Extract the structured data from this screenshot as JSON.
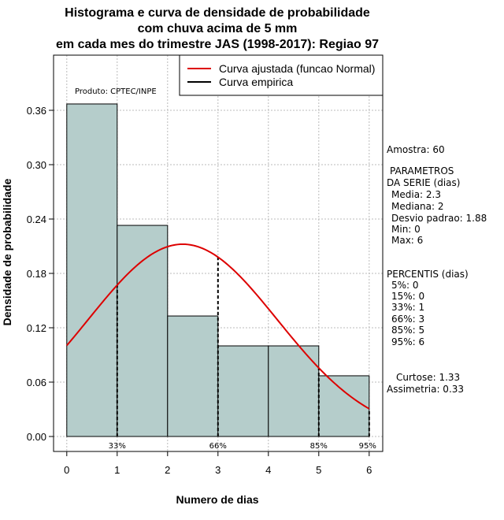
{
  "colors": {
    "bar_fill": "#b5cdcb",
    "fitted_curve": "#dd0000",
    "grid": "#bbbbbb"
  },
  "chart_data": {
    "type": "bar",
    "title_lines": [
      "Histograma e curva de densidade de probabilidade",
      "com chuva acima de 5 mm",
      "em cada mes do trimestre JAS (1998-2017): Regiao 97"
    ],
    "xlabel": "Numero de dias",
    "ylabel": "Densidade de probabilidade",
    "xlim": [
      -0.2,
      6.2
    ],
    "ylim": [
      0,
      0.42
    ],
    "x_ticks": [
      "0",
      "1",
      "2",
      "3",
      "4",
      "5",
      "6"
    ],
    "y_ticks": [
      "0.00",
      "0.06",
      "0.12",
      "0.18",
      "0.24",
      "0.30",
      "0.36"
    ],
    "bins": [
      {
        "from": 0,
        "to": 1,
        "value": 0.367
      },
      {
        "from": 1,
        "to": 2,
        "value": 0.233
      },
      {
        "from": 2,
        "to": 3,
        "value": 0.133
      },
      {
        "from": 3,
        "to": 4,
        "value": 0.1
      },
      {
        "from": 4,
        "to": 5,
        "value": 0.1
      },
      {
        "from": 5,
        "to": 6,
        "value": 0.067
      }
    ],
    "fitted_normal": {
      "mean": 2.3,
      "sd": 1.88
    },
    "percentile_markers": [
      {
        "x": 1,
        "label": "33%"
      },
      {
        "x": 3,
        "label": "66%"
      },
      {
        "x": 5,
        "label": "85%"
      },
      {
        "x": 6,
        "label": "95%"
      }
    ],
    "legend": {
      "position": "top-right",
      "entries": [
        {
          "label": "Curva ajustada (funcao Normal)",
          "color": "#dd0000"
        },
        {
          "label": "Curva empirica",
          "color": "#000000"
        }
      ]
    },
    "product_label": "Produto: CPTEC/INPE",
    "grid": true
  },
  "stats": {
    "sample": "Amostra: 60",
    "params_heading_1": "PARAMETROS",
    "params_heading_2": "DA SERIE (dias)",
    "params": [
      "Media: 2.3",
      "Mediana: 2",
      "Desvio padrao: 1.88",
      "Min: 0",
      "Max: 6"
    ],
    "percentis_heading": "PERCENTIS (dias)",
    "percentis": [
      "5%: 0",
      "15%: 0",
      "33%: 1",
      "66%: 3",
      "85%: 5",
      "95%: 6"
    ],
    "curtose": "Curtose: 1.33",
    "assimetria": "Assimetria: 0.33"
  }
}
